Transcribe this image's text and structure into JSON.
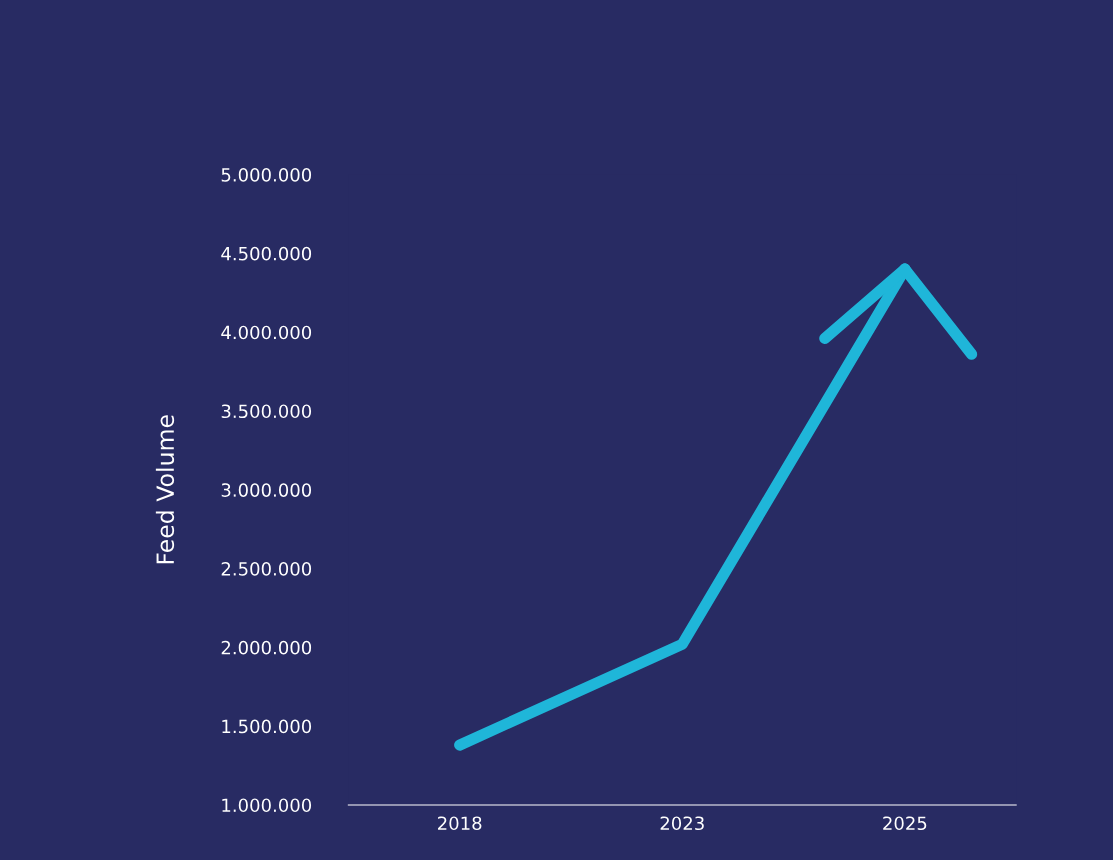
{
  "chart_data": {
    "type": "line",
    "ylabel": "Feed Volume",
    "categories": [
      "2018",
      "2023",
      "2025"
    ],
    "series": [
      {
        "color": "#1fb6d9",
        "values": [
          1380000,
          2020000,
          4400000
        ]
      }
    ],
    "ylim": [
      1000000,
      5000000
    ],
    "yticks": [
      {
        "value": 1000000,
        "label": "1.000.000"
      },
      {
        "value": 1500000,
        "label": "1.500.000"
      },
      {
        "value": 2000000,
        "label": "2.000.000"
      },
      {
        "value": 2500000,
        "label": "2.500.000"
      },
      {
        "value": 3000000,
        "label": "3.000.000"
      },
      {
        "value": 3500000,
        "label": "3.500.000"
      },
      {
        "value": 4000000,
        "label": "4.000.000"
      },
      {
        "value": 4500000,
        "label": "4.500.000"
      },
      {
        "value": 5000000,
        "label": "5.000.000"
      }
    ],
    "grid": false,
    "legend": false,
    "line_style": "solid"
  }
}
